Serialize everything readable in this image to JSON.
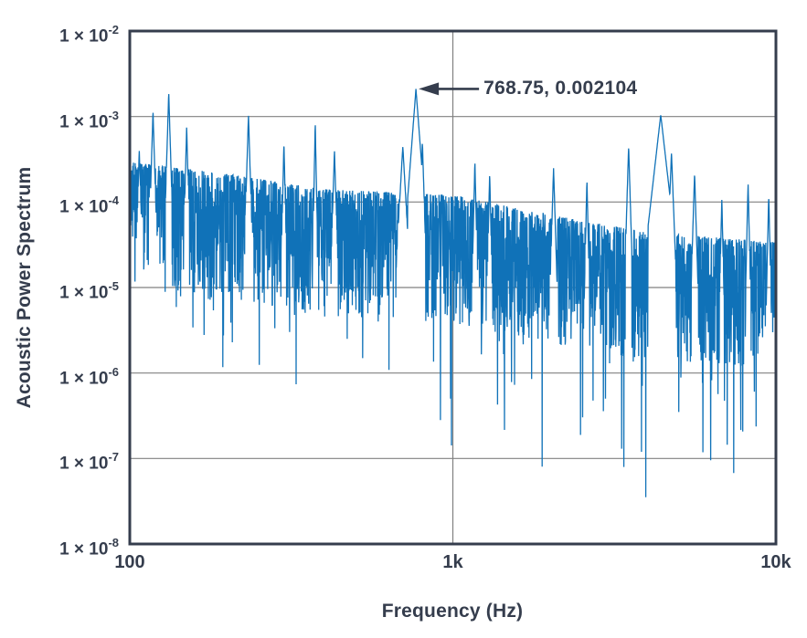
{
  "chart_data": {
    "type": "line",
    "scale": "log-log",
    "title": "",
    "xlabel": "Frequency (Hz)",
    "ylabel": "Acoustic Power Spectrum",
    "xlim": [
      100,
      10000
    ],
    "ylim": [
      1e-08,
      0.01
    ],
    "grid": "major-on",
    "legend": "none",
    "x_ticks": [
      {
        "value": 100,
        "label": "100"
      },
      {
        "value": 1000,
        "label": "1k"
      },
      {
        "value": 10000,
        "label": "10k"
      }
    ],
    "y_ticks": [
      {
        "value": 0.01,
        "mantissa": "1 × 10",
        "exponent": "-2"
      },
      {
        "value": 0.001,
        "mantissa": "1 × 10",
        "exponent": "-3"
      },
      {
        "value": 0.0001,
        "mantissa": "1 × 10",
        "exponent": "-4"
      },
      {
        "value": 1e-05,
        "mantissa": "1 × 10",
        "exponent": "-5"
      },
      {
        "value": 1e-06,
        "mantissa": "1 × 10",
        "exponent": "-6"
      },
      {
        "value": 1e-07,
        "mantissa": "1 × 10",
        "exponent": "-7"
      },
      {
        "value": 1e-08,
        "mantissa": "1 × 10",
        "exponent": "-8"
      }
    ],
    "annotation": {
      "label": "768.75, 0.002104",
      "x": 768.75,
      "y": 0.002104
    },
    "colors": {
      "trace": "#1072B8",
      "frame": "#353D4D",
      "text": "#353D4D",
      "grid": "#808080",
      "background": "#ffffff"
    },
    "spectrum": {
      "bins": 3000,
      "seed": 1337,
      "envelope_log10": [
        [
          2.0,
          -3.68
        ],
        [
          2.3,
          -3.82
        ],
        [
          2.6,
          -4.0
        ],
        [
          3.0,
          -4.07
        ],
        [
          3.3,
          -4.3
        ],
        [
          3.6,
          -4.5
        ],
        [
          4.0,
          -4.62
        ]
      ],
      "peaks": [
        [
          107,
          0.0004,
          0.008
        ],
        [
          118,
          0.00115,
          0.008
        ],
        [
          132,
          0.0019,
          0.008
        ],
        [
          150,
          0.00075,
          0.007
        ],
        [
          233,
          0.00105,
          0.008
        ],
        [
          300,
          0.0005,
          0.006
        ],
        [
          375,
          0.00085,
          0.005
        ],
        [
          430,
          0.0004,
          0.008
        ],
        [
          700,
          0.00045,
          0.015
        ],
        [
          768.75,
          0.002104,
          0.02
        ],
        [
          805,
          0.0005,
          0.008
        ],
        [
          1170,
          0.0003,
          0.006
        ],
        [
          1300,
          0.00022,
          0.006
        ],
        [
          2050,
          0.00025,
          0.008
        ],
        [
          2600,
          0.00018,
          0.006
        ],
        [
          3500,
          0.00045,
          0.008
        ],
        [
          4400,
          0.00105,
          0.03
        ],
        [
          4750,
          0.00038,
          0.01
        ],
        [
          5600,
          0.00022,
          0.008
        ],
        [
          6800,
          0.00011,
          0.006
        ],
        [
          8200,
          0.00017,
          0.006
        ],
        [
          9500,
          0.00012,
          0.006
        ]
      ]
    }
  }
}
